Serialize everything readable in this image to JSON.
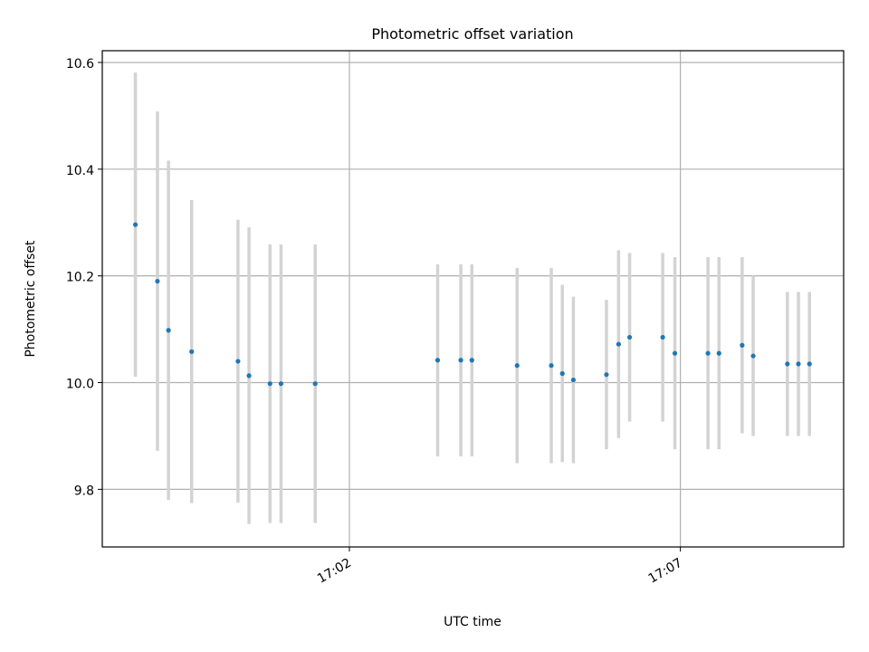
{
  "chart_data": {
    "type": "scatter",
    "title": "Photometric offset variation",
    "xlabel": "UTC time",
    "ylabel": "Photometric offset",
    "x_unit": "UTC time (HH:MM, decimal minutes)",
    "xlim": [
      "16:58:16",
      "17:09:28"
    ],
    "ylim": [
      9.692,
      10.622
    ],
    "x_ticks": [
      {
        "label": "17:02",
        "value": "17:02:00"
      },
      {
        "label": "17:07",
        "value": "17:07:00"
      }
    ],
    "y_ticks": [
      {
        "label": "9.8",
        "value": 9.8
      },
      {
        "label": "10.0",
        "value": 10.0
      },
      {
        "label": "10.2",
        "value": 10.2
      },
      {
        "label": "10.4",
        "value": 10.4
      },
      {
        "label": "10.6",
        "value": 10.6
      }
    ],
    "grid": true,
    "colors": {
      "point": "#1f77b4",
      "errorbar": "#d3d3d3",
      "grid": "#b0b0b0"
    },
    "points": [
      {
        "x": "16:58:46",
        "y": 10.296,
        "err": 0.285
      },
      {
        "x": "16:59:06",
        "y": 10.19,
        "err": 0.318
      },
      {
        "x": "16:59:16",
        "y": 10.098,
        "err": 0.318
      },
      {
        "x": "16:59:37",
        "y": 10.058,
        "err": 0.284
      },
      {
        "x": "17:00:19",
        "y": 10.04,
        "err": 0.265
      },
      {
        "x": "17:00:29",
        "y": 10.013,
        "err": 0.278
      },
      {
        "x": "17:00:48",
        "y": 9.998,
        "err": 0.261
      },
      {
        "x": "17:00:58",
        "y": 9.998,
        "err": 0.261
      },
      {
        "x": "17:01:29",
        "y": 9.998,
        "err": 0.261
      },
      {
        "x": "17:03:20",
        "y": 10.042,
        "err": 0.18
      },
      {
        "x": "17:03:41",
        "y": 10.042,
        "err": 0.18
      },
      {
        "x": "17:03:51",
        "y": 10.042,
        "err": 0.18
      },
      {
        "x": "17:04:32",
        "y": 10.032,
        "err": 0.183
      },
      {
        "x": "17:05:03",
        "y": 10.032,
        "err": 0.183
      },
      {
        "x": "17:05:13",
        "y": 10.017,
        "err": 0.166
      },
      {
        "x": "17:05:23",
        "y": 10.005,
        "err": 0.156
      },
      {
        "x": "17:05:53",
        "y": 10.015,
        "err": 0.14
      },
      {
        "x": "17:06:04",
        "y": 10.072,
        "err": 0.176
      },
      {
        "x": "17:06:14",
        "y": 10.085,
        "err": 0.158
      },
      {
        "x": "17:06:44",
        "y": 10.085,
        "err": 0.158
      },
      {
        "x": "17:06:55",
        "y": 10.055,
        "err": 0.18
      },
      {
        "x": "17:07:25",
        "y": 10.055,
        "err": 0.18
      },
      {
        "x": "17:07:35",
        "y": 10.055,
        "err": 0.18
      },
      {
        "x": "17:07:56",
        "y": 10.07,
        "err": 0.165
      },
      {
        "x": "17:08:06",
        "y": 10.05,
        "err": 0.15
      },
      {
        "x": "17:08:37",
        "y": 10.035,
        "err": 0.135
      },
      {
        "x": "17:08:47",
        "y": 10.035,
        "err": 0.135
      },
      {
        "x": "17:08:57",
        "y": 10.035,
        "err": 0.135
      }
    ]
  }
}
